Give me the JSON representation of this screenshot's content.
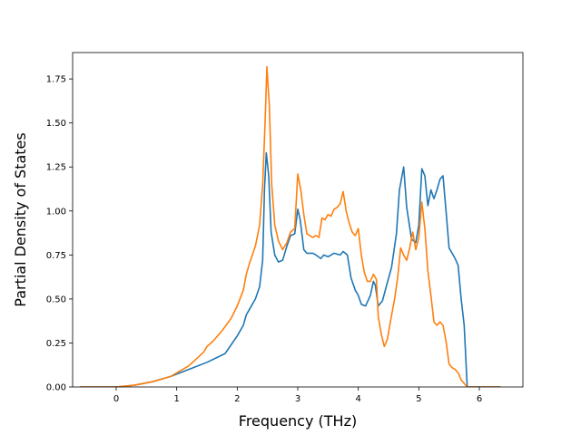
{
  "chart_data": {
    "type": "line",
    "title": "",
    "xlabel": "Frequency (THz)",
    "ylabel": "Partial Density of States",
    "xlim": [
      -0.72,
      6.72
    ],
    "ylim": [
      0,
      1.9
    ],
    "xticks": [
      {
        "value": 0,
        "label": "0"
      },
      {
        "value": 1,
        "label": "1"
      },
      {
        "value": 2,
        "label": "2"
      },
      {
        "value": 3,
        "label": "3"
      },
      {
        "value": 4,
        "label": "4"
      },
      {
        "value": 5,
        "label": "5"
      },
      {
        "value": 6,
        "label": "6"
      }
    ],
    "yticks": [
      {
        "value": 0,
        "label": "0.00"
      },
      {
        "value": 0.25,
        "label": "0.25"
      },
      {
        "value": 0.5,
        "label": "0.50"
      },
      {
        "value": 0.75,
        "label": "0.75"
      },
      {
        "value": 1.0,
        "label": "1.00"
      },
      {
        "value": 1.25,
        "label": "1.25"
      },
      {
        "value": 1.5,
        "label": "1.50"
      },
      {
        "value": 1.75,
        "label": "1.75"
      }
    ],
    "grid": false,
    "legend": "none",
    "series": [
      {
        "color": "#1f77b4",
        "points": [
          [
            -0.6,
            0
          ],
          [
            0,
            0
          ],
          [
            0.3,
            0.01
          ],
          [
            0.6,
            0.03
          ],
          [
            0.9,
            0.06
          ],
          [
            1.2,
            0.1
          ],
          [
            1.5,
            0.14
          ],
          [
            1.8,
            0.19
          ],
          [
            1.9,
            0.24
          ],
          [
            2.0,
            0.29
          ],
          [
            2.1,
            0.35
          ],
          [
            2.15,
            0.41
          ],
          [
            2.2,
            0.44
          ],
          [
            2.3,
            0.5
          ],
          [
            2.37,
            0.57
          ],
          [
            2.42,
            0.72
          ],
          [
            2.45,
            1.12
          ],
          [
            2.48,
            1.33
          ],
          [
            2.52,
            1.2
          ],
          [
            2.56,
            0.88
          ],
          [
            2.62,
            0.75
          ],
          [
            2.68,
            0.71
          ],
          [
            2.75,
            0.72
          ],
          [
            2.82,
            0.8
          ],
          [
            2.88,
            0.86
          ],
          [
            2.95,
            0.87
          ],
          [
            3.0,
            1.01
          ],
          [
            3.04,
            0.95
          ],
          [
            3.1,
            0.78
          ],
          [
            3.15,
            0.76
          ],
          [
            3.25,
            0.76
          ],
          [
            3.3,
            0.75
          ],
          [
            3.38,
            0.73
          ],
          [
            3.43,
            0.75
          ],
          [
            3.5,
            0.74
          ],
          [
            3.6,
            0.76
          ],
          [
            3.7,
            0.75
          ],
          [
            3.75,
            0.77
          ],
          [
            3.82,
            0.75
          ],
          [
            3.88,
            0.62
          ],
          [
            3.95,
            0.55
          ],
          [
            4.0,
            0.52
          ],
          [
            4.05,
            0.47
          ],
          [
            4.12,
            0.46
          ],
          [
            4.2,
            0.52
          ],
          [
            4.25,
            0.6
          ],
          [
            4.28,
            0.58
          ],
          [
            4.33,
            0.46
          ],
          [
            4.4,
            0.49
          ],
          [
            4.47,
            0.58
          ],
          [
            4.55,
            0.68
          ],
          [
            4.63,
            0.87
          ],
          [
            4.68,
            1.12
          ],
          [
            4.75,
            1.25
          ],
          [
            4.8,
            1.02
          ],
          [
            4.88,
            0.84
          ],
          [
            4.95,
            0.82
          ],
          [
            5.0,
            0.92
          ],
          [
            5.05,
            1.24
          ],
          [
            5.1,
            1.2
          ],
          [
            5.15,
            1.03
          ],
          [
            5.2,
            1.12
          ],
          [
            5.25,
            1.07
          ],
          [
            5.3,
            1.12
          ],
          [
            5.35,
            1.18
          ],
          [
            5.4,
            1.2
          ],
          [
            5.45,
            1.0
          ],
          [
            5.5,
            0.79
          ],
          [
            5.55,
            0.76
          ],
          [
            5.6,
            0.73
          ],
          [
            5.65,
            0.69
          ],
          [
            5.7,
            0.5
          ],
          [
            5.75,
            0.35
          ],
          [
            5.8,
            0.0
          ],
          [
            6.35,
            0
          ]
        ]
      },
      {
        "color": "#ff7f0e",
        "points": [
          [
            -0.6,
            0
          ],
          [
            0,
            0
          ],
          [
            0.3,
            0.01
          ],
          [
            0.6,
            0.03
          ],
          [
            0.9,
            0.06
          ],
          [
            1.2,
            0.12
          ],
          [
            1.45,
            0.2
          ],
          [
            1.5,
            0.23
          ],
          [
            1.6,
            0.26
          ],
          [
            1.75,
            0.32
          ],
          [
            1.9,
            0.39
          ],
          [
            2.0,
            0.46
          ],
          [
            2.1,
            0.55
          ],
          [
            2.15,
            0.64
          ],
          [
            2.2,
            0.7
          ],
          [
            2.3,
            0.8
          ],
          [
            2.37,
            0.92
          ],
          [
            2.42,
            1.15
          ],
          [
            2.46,
            1.5
          ],
          [
            2.49,
            1.82
          ],
          [
            2.53,
            1.6
          ],
          [
            2.57,
            1.15
          ],
          [
            2.62,
            0.92
          ],
          [
            2.68,
            0.83
          ],
          [
            2.75,
            0.78
          ],
          [
            2.82,
            0.82
          ],
          [
            2.88,
            0.88
          ],
          [
            2.95,
            0.9
          ],
          [
            3.0,
            1.21
          ],
          [
            3.05,
            1.12
          ],
          [
            3.1,
            0.98
          ],
          [
            3.15,
            0.87
          ],
          [
            3.2,
            0.86
          ],
          [
            3.25,
            0.85
          ],
          [
            3.3,
            0.86
          ],
          [
            3.35,
            0.85
          ],
          [
            3.4,
            0.96
          ],
          [
            3.45,
            0.95
          ],
          [
            3.5,
            0.98
          ],
          [
            3.55,
            0.97
          ],
          [
            3.6,
            1.01
          ],
          [
            3.65,
            1.02
          ],
          [
            3.7,
            1.04
          ],
          [
            3.75,
            1.11
          ],
          [
            3.8,
            1.0
          ],
          [
            3.85,
            0.93
          ],
          [
            3.9,
            0.88
          ],
          [
            3.95,
            0.86
          ],
          [
            4.0,
            0.9
          ],
          [
            4.05,
            0.75
          ],
          [
            4.1,
            0.65
          ],
          [
            4.15,
            0.6
          ],
          [
            4.2,
            0.6
          ],
          [
            4.25,
            0.64
          ],
          [
            4.3,
            0.61
          ],
          [
            4.33,
            0.4
          ],
          [
            4.38,
            0.3
          ],
          [
            4.43,
            0.23
          ],
          [
            4.48,
            0.27
          ],
          [
            4.53,
            0.37
          ],
          [
            4.6,
            0.5
          ],
          [
            4.65,
            0.62
          ],
          [
            4.7,
            0.79
          ],
          [
            4.75,
            0.75
          ],
          [
            4.8,
            0.72
          ],
          [
            4.85,
            0.79
          ],
          [
            4.9,
            0.88
          ],
          [
            4.95,
            0.78
          ],
          [
            5.0,
            0.85
          ],
          [
            5.05,
            1.05
          ],
          [
            5.1,
            0.9
          ],
          [
            5.15,
            0.66
          ],
          [
            5.2,
            0.52
          ],
          [
            5.25,
            0.37
          ],
          [
            5.3,
            0.35
          ],
          [
            5.35,
            0.37
          ],
          [
            5.4,
            0.35
          ],
          [
            5.45,
            0.26
          ],
          [
            5.5,
            0.13
          ],
          [
            5.55,
            0.11
          ],
          [
            5.6,
            0.1
          ],
          [
            5.65,
            0.08
          ],
          [
            5.7,
            0.04
          ],
          [
            5.75,
            0.02
          ],
          [
            5.8,
            0.0
          ],
          [
            6.35,
            0
          ]
        ]
      }
    ]
  }
}
